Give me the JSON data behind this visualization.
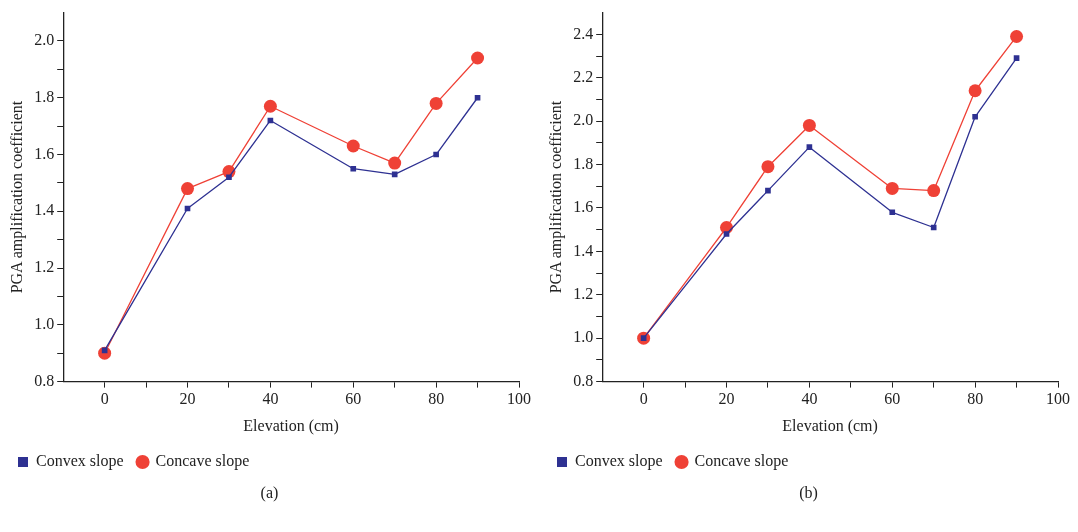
{
  "chart_data": [
    {
      "type": "line",
      "xlabel": "Elevation (cm)",
      "ylabel": "PGA amplification coefficient",
      "x": [
        0,
        20,
        30,
        40,
        60,
        70,
        80,
        90
      ],
      "series": [
        {
          "name": "Convex slope",
          "color": "#2e3192",
          "marker": "square",
          "values": [
            0.91,
            1.41,
            1.52,
            1.72,
            1.55,
            1.53,
            1.6,
            1.8
          ]
        },
        {
          "name": "Concave slope",
          "color": "#ef4136",
          "marker": "circle",
          "values": [
            0.9,
            1.48,
            1.54,
            1.77,
            1.63,
            1.57,
            1.78,
            1.94
          ]
        }
      ],
      "xlim": [
        -10,
        100
      ],
      "xticks": [
        0,
        {
          "value": 10,
          "label": null
        },
        20,
        {
          "value": 30,
          "label": null
        },
        40,
        {
          "value": 50,
          "label": null
        },
        60,
        {
          "value": 70,
          "label": null
        },
        80,
        {
          "value": 90,
          "label": null
        },
        100
      ],
      "ylim": [
        0.8,
        2.1
      ],
      "yticks": [
        {
          "value": 0.8,
          "label": "0.8"
        },
        {
          "value": 0.9,
          "label": null
        },
        {
          "value": 1.0,
          "label": "1.0"
        },
        {
          "value": 1.1,
          "label": null
        },
        {
          "value": 1.2,
          "label": "1.2"
        },
        {
          "value": 1.3,
          "label": null
        },
        {
          "value": 1.4,
          "label": "1.4"
        },
        {
          "value": 1.5,
          "label": null
        },
        {
          "value": 1.6,
          "label": "1.6"
        },
        {
          "value": 1.7,
          "label": null
        },
        {
          "value": 1.8,
          "label": "1.8"
        },
        {
          "value": 1.9,
          "label": null
        },
        {
          "value": 2.0,
          "label": "2.0"
        }
      ],
      "grid": false,
      "legend": "bottom left",
      "line_style": "solid",
      "annotations": [
        "(a)"
      ]
    },
    {
      "type": "line",
      "xlabel": "Elevation (cm)",
      "ylabel": "PGA amplification coefficient",
      "x": [
        0,
        20,
        30,
        40,
        60,
        70,
        80,
        90
      ],
      "series": [
        {
          "name": "Convex slope",
          "color": "#2e3192",
          "marker": "square",
          "values": [
            1.0,
            1.48,
            1.68,
            1.88,
            1.58,
            1.51,
            2.02,
            2.29
          ]
        },
        {
          "name": "Concave slope",
          "color": "#ef4136",
          "marker": "circle",
          "values": [
            1.0,
            1.51,
            1.79,
            1.98,
            1.69,
            1.68,
            2.14,
            2.39
          ]
        }
      ],
      "xlim": [
        -10,
        100
      ],
      "xticks": [
        0,
        {
          "value": 10,
          "label": null
        },
        20,
        {
          "value": 30,
          "label": null
        },
        40,
        {
          "value": 50,
          "label": null
        },
        60,
        {
          "value": 70,
          "label": null
        },
        80,
        {
          "value": 90,
          "label": null
        },
        100
      ],
      "ylim": [
        0.8,
        2.5
      ],
      "yticks": [
        {
          "value": 0.8,
          "label": "0.8"
        },
        {
          "value": 0.9,
          "label": null
        },
        {
          "value": 1.0,
          "label": "1.0"
        },
        {
          "value": 1.1,
          "label": null
        },
        {
          "value": 1.2,
          "label": "1.2"
        },
        {
          "value": 1.3,
          "label": null
        },
        {
          "value": 1.4,
          "label": "1.4"
        },
        {
          "value": 1.5,
          "label": null
        },
        {
          "value": 1.6,
          "label": "1.6"
        },
        {
          "value": 1.7,
          "label": null
        },
        {
          "value": 1.8,
          "label": "1.8"
        },
        {
          "value": 1.9,
          "label": null
        },
        {
          "value": 2.0,
          "label": "2.0"
        },
        {
          "value": 2.1,
          "label": null
        },
        {
          "value": 2.2,
          "label": "2.2"
        },
        {
          "value": 2.3,
          "label": null
        },
        {
          "value": 2.4,
          "label": "2.4"
        }
      ],
      "grid": false,
      "legend": "bottom left",
      "line_style": "solid",
      "annotations": [
        "(b)"
      ]
    }
  ]
}
